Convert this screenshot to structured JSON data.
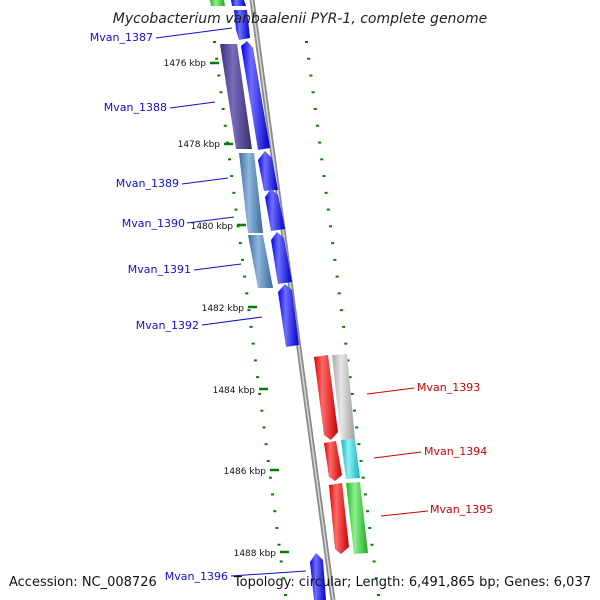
{
  "title": "Mycobacterium vanbaalenii PYR-1, complete genome",
  "footer": {
    "accession": "Accession: NC_008726",
    "topology": "Topology: circular; Length: 6,491,865 bp; Genes: 6,037"
  },
  "kbp_ticks": [
    "1476 kbp",
    "1478 kbp",
    "1480 kbp",
    "1482 kbp",
    "1484 kbp",
    "1486 kbp",
    "1488 kbp"
  ],
  "genes_forward": [
    "Mvan_1387",
    "Mvan_1388",
    "Mvan_1389",
    "Mvan_1390",
    "Mvan_1391",
    "Mvan_1392",
    "Mvan_1396"
  ],
  "genes_reverse": [
    "Mvan_1393",
    "Mvan_1394",
    "Mvan_1395"
  ],
  "colors": {
    "forward_gene": "#1a1aff",
    "reverse_gene": "#ff1a1a",
    "backbone": "#8a8a8a",
    "tick": "#0a7a0a",
    "cog_1388": "#4b3d8c",
    "cog_steel": "#4a7fb5",
    "cog_gray": "#b8b8b8",
    "cog_cyan": "#22d0d8",
    "cog_green": "#33cc33",
    "forward_label": "#1010c8",
    "reverse_label": "#cc0000"
  }
}
